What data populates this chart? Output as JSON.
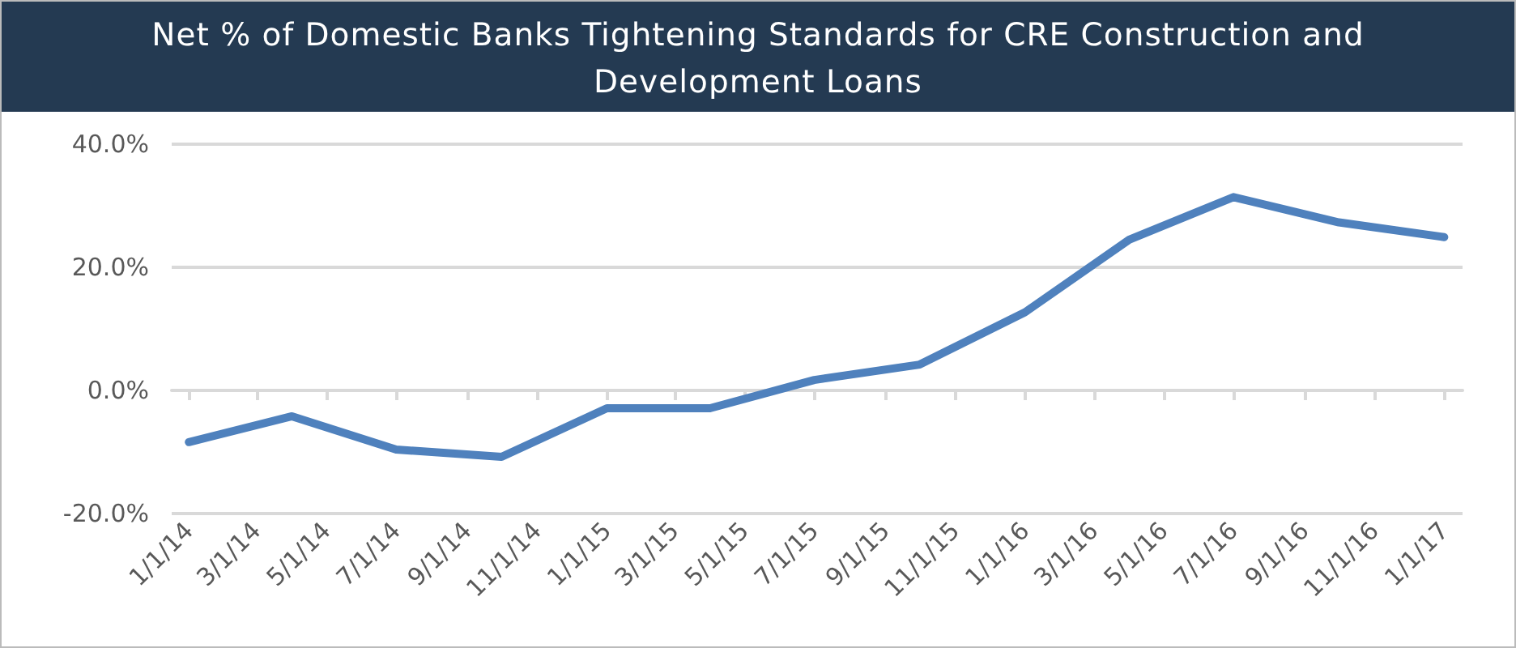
{
  "chart_data": {
    "type": "line",
    "title": "Net % of Domestic Banks Tightening Standards for CRE Construction and Development Loans",
    "x": [
      "2014-01-01",
      "2014-04-01",
      "2014-07-01",
      "2014-10-01",
      "2015-01-01",
      "2015-04-01",
      "2015-07-01",
      "2015-10-01",
      "2016-01-01",
      "2016-04-01",
      "2016-07-01",
      "2016-10-01",
      "2017-01-01"
    ],
    "series": [
      {
        "color": "#4f81bd",
        "values": [
          -8.4,
          -4.2,
          -9.6,
          -10.8,
          -2.9,
          -2.9,
          1.7,
          4.2,
          12.7,
          24.5,
          31.4,
          27.3,
          24.9
        ]
      }
    ],
    "xlim": [
      "2013-12-17",
      "2017-01-17"
    ],
    "xticks": [
      {
        "value": "2014-01-01",
        "label": "1/1/14"
      },
      {
        "value": "2014-03-01",
        "label": "3/1/14"
      },
      {
        "value": "2014-05-01",
        "label": "5/1/14"
      },
      {
        "value": "2014-07-01",
        "label": "7/1/14"
      },
      {
        "value": "2014-09-01",
        "label": "9/1/14"
      },
      {
        "value": "2014-11-01",
        "label": "11/1/14"
      },
      {
        "value": "2015-01-01",
        "label": "1/1/15"
      },
      {
        "value": "2015-03-01",
        "label": "3/1/15"
      },
      {
        "value": "2015-05-01",
        "label": "5/1/15"
      },
      {
        "value": "2015-07-01",
        "label": "7/1/15"
      },
      {
        "value": "2015-09-01",
        "label": "9/1/15"
      },
      {
        "value": "2015-11-01",
        "label": "11/1/15"
      },
      {
        "value": "2016-01-01",
        "label": "1/1/16"
      },
      {
        "value": "2016-03-01",
        "label": "3/1/16"
      },
      {
        "value": "2016-05-01",
        "label": "5/1/16"
      },
      {
        "value": "2016-07-01",
        "label": "7/1/16"
      },
      {
        "value": "2016-09-01",
        "label": "9/1/16"
      },
      {
        "value": "2016-11-01",
        "label": "11/1/16"
      },
      {
        "value": "2017-01-01",
        "label": "1/1/17"
      }
    ],
    "ylim": [
      -20,
      40
    ],
    "yticks": [
      {
        "value": -20,
        "label": "-20.0%"
      },
      {
        "value": 0,
        "label": "0.0%"
      },
      {
        "value": 20,
        "label": "20.0%"
      },
      {
        "value": 40,
        "label": "40.0%"
      }
    ],
    "grid": "y",
    "marker": "none",
    "line_style": "solid"
  }
}
